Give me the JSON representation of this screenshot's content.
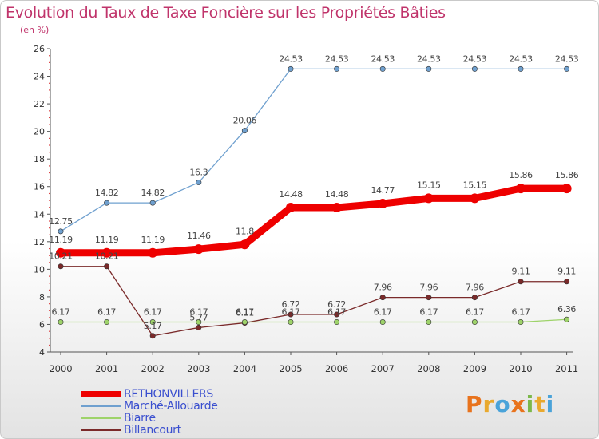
{
  "header": {
    "title": "Evolution du Taux de Taxe Foncière sur les Propriétés Bâties",
    "unit": "(en %)"
  },
  "logo": {
    "text": "Proxiti",
    "colors": [
      "#e8731d",
      "#e9a92e",
      "#4aa3d9",
      "#e8731d",
      "#7cb84a",
      "#e9a92e",
      "#4aa3d9"
    ]
  },
  "chart_data": {
    "type": "line",
    "x": [
      "2000",
      "2001",
      "2002",
      "2003",
      "2004",
      "2005",
      "2006",
      "2007",
      "2008",
      "2009",
      "2010",
      "2011"
    ],
    "ylim": [
      4,
      26
    ],
    "yticks": [
      4,
      6,
      8,
      10,
      12,
      14,
      16,
      18,
      20,
      22,
      24,
      26
    ],
    "grid": false,
    "legend_position": "bottom-left",
    "series": [
      {
        "name": "RETHONVILLERS",
        "color": "#ee0000",
        "values": [
          11.19,
          11.19,
          11.19,
          11.46,
          11.8,
          14.48,
          14.48,
          14.77,
          15.15,
          15.15,
          15.86,
          15.86
        ],
        "labels": [
          "11.19",
          "11.19",
          "11.19",
          "11.46",
          "11.8",
          "14.48",
          "14.48",
          "14.77",
          "15.15",
          "15.15",
          "15.86",
          "15.86"
        ]
      },
      {
        "name": "Marché-Allouarde",
        "color": "#6fa0cf",
        "values": [
          12.75,
          14.82,
          14.82,
          16.3,
          20.06,
          24.53,
          24.53,
          24.53,
          24.53,
          24.53,
          24.53,
          24.53
        ],
        "labels": [
          "12.75",
          "14.82",
          "14.82",
          "16.3",
          "20.06",
          "24.53",
          "24.53",
          "24.53",
          "24.53",
          "24.53",
          "24.53",
          "24.53"
        ]
      },
      {
        "name": "Biarre",
        "color": "#9ed36a",
        "values": [
          6.17,
          6.17,
          6.17,
          6.17,
          6.17,
          6.17,
          6.17,
          6.17,
          6.17,
          6.17,
          6.17,
          6.36
        ],
        "labels": [
          "6.17",
          "6.17",
          "6.17",
          "6.17",
          "6.17",
          "6.17",
          "6.17",
          "6.17",
          "6.17",
          "6.17",
          "6.17",
          "6.36"
        ]
      },
      {
        "name": "Billancourt",
        "color": "#7a2a2a",
        "values": [
          10.21,
          10.21,
          5.17,
          5.77,
          6.11,
          6.72,
          6.72,
          7.96,
          7.96,
          7.96,
          9.11,
          9.11
        ],
        "labels": [
          "10.21",
          "10.21",
          "5.17",
          "5.77",
          "6.11",
          "6.72",
          "6.72",
          "7.96",
          "7.96",
          "7.96",
          "9.11",
          "9.11"
        ]
      }
    ]
  }
}
